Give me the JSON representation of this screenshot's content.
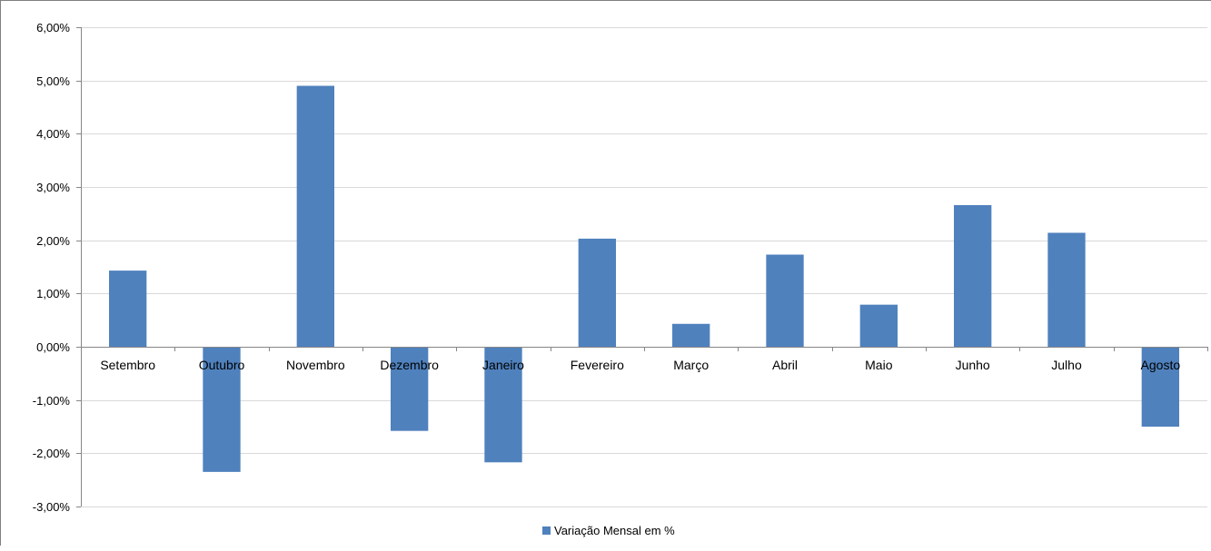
{
  "chart_data": {
    "type": "bar",
    "categories": [
      "Setembro",
      "Outubro",
      "Novembro",
      "Dezembro",
      "Janeiro",
      "Fevereiro",
      "Março",
      "Abril",
      "Maio",
      "Junho",
      "Julho",
      "Agosto"
    ],
    "series": [
      {
        "name": "Variação Mensal em %",
        "values": [
          1.43,
          -2.35,
          4.9,
          -1.58,
          -2.17,
          2.03,
          0.43,
          1.73,
          0.79,
          2.66,
          2.14,
          -1.5
        ],
        "color": "#4f81bd"
      }
    ],
    "title": "",
    "xlabel": "",
    "ylabel": "",
    "ylim": [
      -3,
      6
    ],
    "y_ticks": [
      6,
      5,
      4,
      3,
      2,
      1,
      0,
      -1,
      -2,
      -3
    ],
    "y_tick_labels": [
      "6,00%",
      "5,00%",
      "4,00%",
      "3,00%",
      "2,00%",
      "1,00%",
      "0,00%",
      "-1,00%",
      "-2,00%",
      "-3,00%"
    ],
    "grid": true,
    "legend_position": "bottom",
    "gridline_color": "#d9d9d9",
    "axis_color": "#868686"
  }
}
